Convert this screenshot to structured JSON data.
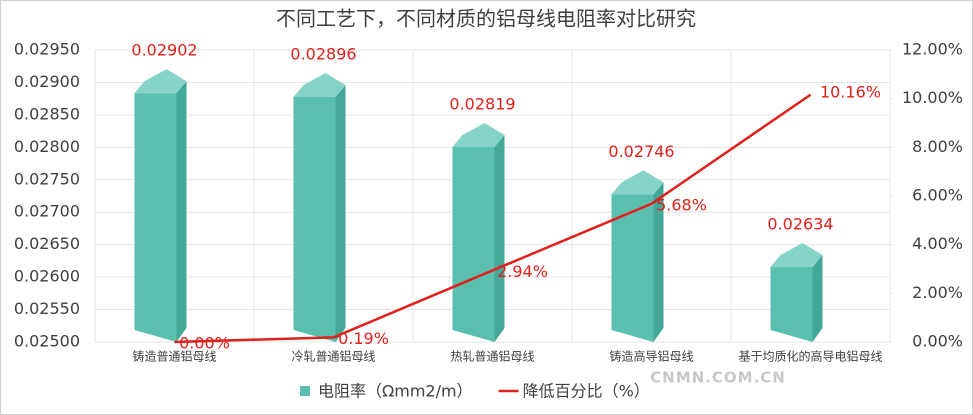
{
  "chart_data": {
    "type": "bar-line",
    "title": "不同工艺下，不同材质的铝母线电阻率对比研究",
    "categories": [
      "铸造普通铝母线",
      "冷轧普通铝母线",
      "热轧普通铝母线",
      "铸造高导铝母线",
      "基于均质化的高导电铝母线"
    ],
    "series": [
      {
        "name": "电阻率（Ωmm2/m）",
        "type": "bar",
        "color": "#5bbfb0",
        "values": [
          0.02902,
          0.02896,
          0.02819,
          0.02746,
          0.02634
        ]
      },
      {
        "name": "降低百分比（%）",
        "type": "line",
        "axis": "y2",
        "color": "#e0201b",
        "values": [
          0,
          0.19,
          2.94,
          5.68,
          10.16
        ],
        "value_labels": [
          "0.00%",
          "0.19%",
          "2.94%",
          "5.68%",
          "10.16%"
        ]
      }
    ],
    "ylim": [
      0.025,
      0.0295
    ],
    "yticks": [
      {
        "value": 0.025,
        "label": "0.02500"
      },
      {
        "value": 0.0255,
        "label": "0.02550"
      },
      {
        "value": 0.026,
        "label": "0.02600"
      },
      {
        "value": 0.0265,
        "label": "0.02650"
      },
      {
        "value": 0.027,
        "label": "0.02700"
      },
      {
        "value": 0.0275,
        "label": "0.02750"
      },
      {
        "value": 0.028,
        "label": "0.02800"
      },
      {
        "value": 0.0285,
        "label": "0.02850"
      },
      {
        "value": 0.029,
        "label": "0.02900"
      },
      {
        "value": 0.0295,
        "label": "0.02950"
      }
    ],
    "y2lim": [
      0,
      12
    ],
    "y2ticks": [
      {
        "value": 0,
        "label": "0.00%"
      },
      {
        "value": 2,
        "label": "2.00%"
      },
      {
        "value": 4,
        "label": "4.00%"
      },
      {
        "value": 6,
        "label": "6.00%"
      },
      {
        "value": 8,
        "label": "8.00%"
      },
      {
        "value": 10,
        "label": "10.00%"
      },
      {
        "value": 12,
        "label": "12.00%"
      }
    ],
    "grid": true,
    "legend": "bottom",
    "watermark": "CNMN.COM.CN"
  }
}
